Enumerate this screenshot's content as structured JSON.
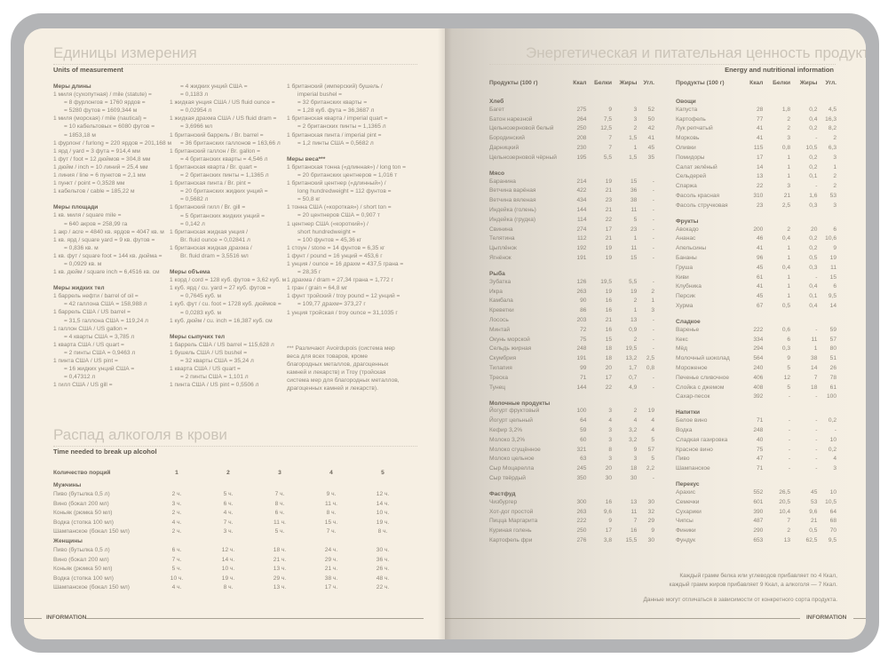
{
  "left_page": {
    "title": "Единицы измерения",
    "subtitle": "Units of measurement",
    "columns": [
      [
        {
          "title": "Меры длины",
          "lines": [
            "1 миля (сухопутная) / mile (statute) =",
            "= 8 фурлонгов = 1760 ярдов =",
            "= 5280 футов = 1609,344 м",
            "1 миля (морская) / mile (nautical) =",
            "= 10 кабельтовых = 6080 футов =",
            "= 1853,18 м",
            "1 фурлонг / furlong = 220 ярдов = 201,168 м",
            "1 ярд / yard = 3 фута = 914,4 мм",
            "1 фут / foot = 12 дюймов = 304,8 мм",
            "1 дюйм / inch = 10 линий = 25,4 мм",
            "1 линия / line = 6 пунктов = 2,1 мм",
            "1 пункт / point = 0,3528 мм",
            "1 кабельтов / cable = 185,22 м"
          ]
        },
        {
          "title": "Меры площади",
          "lines": [
            "1 кв. миля / square mile =",
            "= 640 акров = 258,99 га",
            "1 акр / acre = 4840 кв. ярдов = 4047 кв. м",
            "1 кв. ярд / square yard = 9 кв. футов =",
            "= 0,836 кв. м",
            "1 кв. фут / square foot = 144 кв. дюйма =",
            "= 0,0929 кв. м",
            "1 кв. дюйм / square inch = 6,4516 кв. см"
          ]
        },
        {
          "title": "Меры жидких тел",
          "lines": [
            "1 баррель нефти / barrel of oil =",
            "= 42 галлона США = 158,988 л",
            "1 баррель США / US barrel =",
            "= 31,5 галлона США = 119,24 л",
            "1 галлон США / US gallon =",
            "= 4 кварты США = 3,785 л",
            "1 кварта США / US quart =",
            "= 2 пинты США = 0,9463 л",
            "1 пинта США / US pint =",
            "= 16 жидких унций США =",
            "= 0,47312 л",
            "1 гилл США / US gill ="
          ]
        }
      ],
      [
        {
          "title": "",
          "lines": [
            "= 4 жидких унций США =",
            "= 0,1183 л",
            "1 жидкая унция США / US fluid ounce =",
            "= 0,02954 л",
            "1 жидкая драхма США / US fluid dram =",
            "= 3,6966 мл",
            "1 британский баррель / Br. barrel =",
            "= 36 британских галлонов = 163,66 л",
            "1 британский галлон / Br. gallon =",
            "= 4 британских кварты = 4,546 л",
            "1 британская кварта / Br. quart =",
            "= 2 британских пинты = 1,1365 л",
            "1 британская пинта / Br. pint =",
            "= 20 британских жидких унций =",
            "= 0,5682 л",
            "1 британский гилл / Br. gill =",
            "= 5 британских жидких унций =",
            "= 0,142 л",
            "1 британская жидкая унция /",
            "Br. fluid ounce = 0,02841 л",
            "1 британская жидкая драхма /",
            "Br. fluid dram = 3,5516 мл"
          ]
        },
        {
          "title": "Меры объема",
          "lines": [
            "1 корд / cord = 128 куб. футов = 3,62 куб. м",
            "1 куб. ярд / cu. yard = 27 куб. футов =",
            "= 0,7645 куб. м",
            "1 куб. фут / cu. foot = 1728 куб. дюймов =",
            "= 0,0283 куб. м",
            "1 куб. дюйм / cu. inch = 16,387 куб. см"
          ]
        },
        {
          "title": "Меры сыпучих тел",
          "lines": [
            "1 баррель США / US barrel = 115,628 л",
            "1 бушель США / US bushel =",
            "= 32 кварты США = 35,24 л",
            "1 кварта США / US quart =",
            "= 2 пинты США = 1,101 л",
            "1 пинта США / US pint = 0,5506 л"
          ]
        }
      ],
      [
        {
          "title": "",
          "lines": [
            "1 британский (имперский) бушель /",
            "imperial bushel =",
            "= 32 британских кварты =",
            "= 1,28 куб. фута = 36,3687 л",
            "1 британская кварта / imperial quart =",
            "= 2 британских пинты = 1,1365 л",
            "1 британская пинта / imperial pint =",
            "= 1,2 пинты США = 0,5682 л"
          ]
        },
        {
          "title": "Меры веса***",
          "lines": [
            "1 британская тонна («длинная») / long ton =",
            "= 20 британских центнеров = 1,016 т",
            "1 британский центнер («длинный») /",
            "long hundredweight = 112 фунтов =",
            "= 50,8 кг",
            "1 тонна США («короткая») / short ton =",
            "= 20 центнеров США = 0,907 т",
            "1 центнер США («короткий») /",
            "short hundredweight =",
            "= 100 фунтов = 45,36 кг",
            "1 стоун / stone = 14 фунтов = 6,35 кг",
            "1 фунт / pound = 16 унций = 453,6 г",
            "1 унция / ounce = 16 драхм = 437,5 грана =",
            "= 28,35 г",
            "1 драхма / dram = 27,34 грана = 1,772 г",
            "1 гран / grain = 64,8 мг",
            "1 фунт тройский / troy pound = 12 унций =",
            "= 109,77 драхм= 373,27 г",
            "1 унция тройская / troy ounce = 31,1035 г"
          ]
        }
      ]
    ],
    "footnote": "*** Различают Avoirdupois (система мер веса для всех товаров, кроме благородных металлов, драгоценных камней и лекарств) и Troy (тройская система мер для благородных металлов, драгоценных камней и лекарств).",
    "alcohol": {
      "title": "Распад алкоголя в крови",
      "subtitle": "Time needed to break up alcohol",
      "header": [
        "Количество порций",
        "1",
        "2",
        "3",
        "4",
        "5"
      ],
      "groups": [
        {
          "name": "Мужчины",
          "rows": [
            [
              "Пиво (бутылка 0,5 л)",
              "2 ч.",
              "5 ч.",
              "7 ч.",
              "9 ч.",
              "12 ч."
            ],
            [
              "Вино (бокал 200 мл)",
              "3 ч.",
              "6 ч.",
              "8 ч.",
              "11 ч.",
              "14 ч."
            ],
            [
              "Коньяк (рюмка 50 мл)",
              "2 ч.",
              "4 ч.",
              "6 ч.",
              "8 ч.",
              "10 ч."
            ],
            [
              "Водка (стопка 100 мл)",
              "4 ч.",
              "7 ч.",
              "11 ч.",
              "15 ч.",
              "19 ч."
            ],
            [
              "Шампанское (бокал 150 мл)",
              "2 ч.",
              "3 ч.",
              "5 ч.",
              "7 ч.",
              "8 ч."
            ]
          ]
        },
        {
          "name": "Женщины",
          "rows": [
            [
              "Пиво (бутылка 0,5 л)",
              "6 ч.",
              "12 ч.",
              "18 ч.",
              "24 ч.",
              "30 ч."
            ],
            [
              "Вино (бокал 200 мл)",
              "7 ч.",
              "14 ч.",
              "21 ч.",
              "29 ч.",
              "36 ч."
            ],
            [
              "Коньяк (рюмка 50 мл)",
              "5 ч.",
              "10 ч.",
              "13 ч.",
              "21 ч.",
              "26 ч."
            ],
            [
              "Водка (стопка 100 мл)",
              "10 ч.",
              "19 ч.",
              "29 ч.",
              "38 ч.",
              "48 ч."
            ],
            [
              "Шампанское (бокал 150 мл)",
              "4 ч.",
              "8 ч.",
              "13 ч.",
              "17 ч.",
              "22 ч."
            ]
          ]
        }
      ]
    },
    "footer": "INFORMATION"
  },
  "right_page": {
    "title": "Энергетическая и питательная ценность продуктов",
    "subtitle": "Energy and nutritional information",
    "header": [
      "Продукты (100 г)",
      "Ккал",
      "Белки",
      "Жиры",
      "Угл."
    ],
    "tables": [
      [
        {
          "name": "Хлеб",
          "rows": [
            [
              "Багет",
              "275",
              "9",
              "3",
              "52"
            ],
            [
              "Батон нарезной",
              "264",
              "7,5",
              "3",
              "50"
            ],
            [
              "Цельнозерновой белый",
              "250",
              "12,5",
              "2",
              "42"
            ],
            [
              "Бородинский",
              "208",
              "7",
              "1,5",
              "41"
            ],
            [
              "Дарницкий",
              "230",
              "7",
              "1",
              "45"
            ],
            [
              "Цельнозерновой чёрный",
              "195",
              "5,5",
              "1,5",
              "35"
            ]
          ]
        },
        {
          "name": "Мясо",
          "rows": [
            [
              "Баранина",
              "214",
              "19",
              "15",
              "-"
            ],
            [
              "Ветчина варёная",
              "422",
              "21",
              "36",
              "-"
            ],
            [
              "Ветчина вяленая",
              "434",
              "23",
              "38",
              "-"
            ],
            [
              "Индейка (голень)",
              "144",
              "21",
              "11",
              "-"
            ],
            [
              "Индейка (грудка)",
              "114",
              "22",
              "5",
              "-"
            ],
            [
              "Свинина",
              "274",
              "17",
              "23",
              "-"
            ],
            [
              "Телятина",
              "112",
              "21",
              "1",
              "-"
            ],
            [
              "Цыплёнок",
              "192",
              "19",
              "11",
              "-"
            ],
            [
              "Ягнёнок",
              "191",
              "19",
              "15",
              "-"
            ]
          ]
        },
        {
          "name": "Рыба",
          "rows": [
            [
              "Зубатка",
              "126",
              "19,5",
              "5,5",
              "-"
            ],
            [
              "Икра",
              "263",
              "19",
              "19",
              "2"
            ],
            [
              "Камбала",
              "90",
              "16",
              "2",
              "1"
            ],
            [
              "Креветки",
              "86",
              "16",
              "1",
              "3"
            ],
            [
              "Лосось",
              "203",
              "21",
              "13",
              "-"
            ],
            [
              "Минтай",
              "72",
              "16",
              "0,9",
              "-"
            ],
            [
              "Окунь морской",
              "75",
              "15",
              "2",
              "-"
            ],
            [
              "Сельдь жирная",
              "248",
              "18",
              "19,5",
              "-"
            ],
            [
              "Скумбрия",
              "191",
              "18",
              "13,2",
              "2,5"
            ],
            [
              "Тилапия",
              "99",
              "20",
              "1,7",
              "0,8"
            ],
            [
              "Треска",
              "71",
              "17",
              "0,7",
              "-"
            ],
            [
              "Тунец",
              "144",
              "22",
              "4,9",
              "-"
            ]
          ]
        },
        {
          "name": "Молочные продукты",
          "rows": [
            [
              "Йогурт фруктовый",
              "100",
              "3",
              "2",
              "19"
            ],
            [
              "Йогурт цельный",
              "64",
              "4",
              "4",
              "4"
            ],
            [
              "Кефир 3,2%",
              "59",
              "3",
              "3,2",
              "4"
            ],
            [
              "Молоко 3,2%",
              "60",
              "3",
              "3,2",
              "5"
            ],
            [
              "Молоко сгущённое",
              "321",
              "8",
              "9",
              "57"
            ],
            [
              "Молоко цельное",
              "63",
              "3",
              "3",
              "5"
            ],
            [
              "Сыр Моцарелла",
              "245",
              "20",
              "18",
              "2,2"
            ],
            [
              "Сыр твёрдый",
              "350",
              "30",
              "30",
              "-"
            ]
          ]
        },
        {
          "name": "Фастфуд",
          "rows": [
            [
              "Чизбургер",
              "300",
              "16",
              "13",
              "30"
            ],
            [
              "Хот-дог простой",
              "263",
              "9,6",
              "11",
              "32"
            ],
            [
              "Пицца Маргарита",
              "222",
              "9",
              "7",
              "29"
            ],
            [
              "Куриная голень",
              "250",
              "17",
              "16",
              "9"
            ],
            [
              "Картофель фри",
              "276",
              "3,8",
              "15,5",
              "30"
            ]
          ]
        }
      ],
      [
        {
          "name": "Овощи",
          "rows": [
            [
              "Капуста",
              "28",
              "1,8",
              "0,2",
              "4,5"
            ],
            [
              "Картофель",
              "77",
              "2",
              "0,4",
              "16,3"
            ],
            [
              "Лук репчатый",
              "41",
              "2",
              "0,2",
              "8,2"
            ],
            [
              "Морковь",
              "41",
              "3",
              "-",
              "2"
            ],
            [
              "Оливки",
              "115",
              "0,8",
              "10,5",
              "6,3"
            ],
            [
              "Помидоры",
              "17",
              "1",
              "0,2",
              "3"
            ],
            [
              "Салат зелёный",
              "14",
              "1",
              "0,2",
              "1"
            ],
            [
              "Сельдерей",
              "13",
              "1",
              "0,1",
              "2"
            ],
            [
              "Спаржа",
              "22",
              "3",
              "-",
              "2"
            ],
            [
              "Фасоль красная",
              "310",
              "21",
              "1,6",
              "53"
            ],
            [
              "Фасоль стручковая",
              "23",
              "2,5",
              "0,3",
              "3"
            ]
          ]
        },
        {
          "name": "Фрукты",
          "rows": [
            [
              "Авокадо",
              "200",
              "2",
              "20",
              "6"
            ],
            [
              "Ананас",
              "46",
              "0,4",
              "0,2",
              "10,6"
            ],
            [
              "Апельсины",
              "41",
              "1",
              "0,2",
              "9"
            ],
            [
              "Бананы",
              "96",
              "1",
              "0,5",
              "19"
            ],
            [
              "Груша",
              "45",
              "0,4",
              "0,3",
              "11"
            ],
            [
              "Киви",
              "61",
              "1",
              "-",
              "15"
            ],
            [
              "Клубника",
              "41",
              "1",
              "0,4",
              "6"
            ],
            [
              "Персик",
              "45",
              "1",
              "0,1",
              "9,5"
            ],
            [
              "Хурма",
              "67",
              "0,5",
              "0,4",
              "14"
            ]
          ]
        },
        {
          "name": "Сладкое",
          "rows": [
            [
              "Варенье",
              "222",
              "0,6",
              "-",
              "59"
            ],
            [
              "Кекс",
              "334",
              "6",
              "11",
              "57"
            ],
            [
              "Мёд",
              "294",
              "0,3",
              "1",
              "80"
            ],
            [
              "Молочный шоколад",
              "564",
              "9",
              "38",
              "51"
            ],
            [
              "Мороженое",
              "240",
              "5",
              "14",
              "26"
            ],
            [
              "Печенье сливочное",
              "406",
              "12",
              "7",
              "78"
            ],
            [
              "Слойка с джемом",
              "408",
              "5",
              "18",
              "61"
            ],
            [
              "Сахар-песок",
              "392",
              "-",
              "-",
              "100"
            ]
          ]
        },
        {
          "name": "Напитки",
          "rows": [
            [
              "Белое вино",
              "71",
              "-",
              "-",
              "0,2"
            ],
            [
              "Водка",
              "248",
              "-",
              "-",
              "-"
            ],
            [
              "Сладкая газировка",
              "40",
              "-",
              "-",
              "10"
            ],
            [
              "Красное вино",
              "75",
              "-",
              "-",
              "0,2"
            ],
            [
              "Пиво",
              "47",
              "-",
              "-",
              "4"
            ],
            [
              "Шампанское",
              "71",
              "-",
              "-",
              "3"
            ]
          ]
        },
        {
          "name": "Перекус",
          "rows": [
            [
              "Арахис",
              "552",
              "26,5",
              "45",
              "10"
            ],
            [
              "Семечки",
              "601",
              "20,5",
              "53",
              "10,5"
            ],
            [
              "Сухарики",
              "390",
              "10,4",
              "9,6",
              "64"
            ],
            [
              "Чипсы",
              "487",
              "7",
              "21",
              "68"
            ],
            [
              "Финики",
              "290",
              "2",
              "0,5",
              "70"
            ],
            [
              "Фундук",
              "653",
              "13",
              "62,5",
              "9,5"
            ]
          ]
        }
      ]
    ],
    "note_1": "Каждый грамм белка или углеводов прибавляет по 4 Ккал,",
    "note_2": "каждый грамм жиров прибавляет 9 Ккал, а алкоголя — 7 Ккал.",
    "note_3": "Данные могут отличаться в зависимости от конкретного сорта продукта.",
    "footer": "INFORMATION"
  }
}
